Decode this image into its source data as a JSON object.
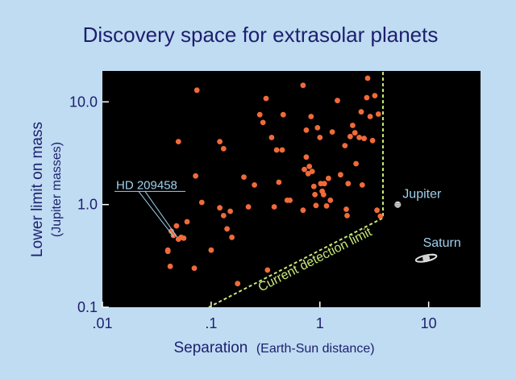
{
  "chart_data": {
    "type": "scatter",
    "title": "Discovery space for extrasolar planets",
    "xlabel_main": "Separation",
    "xlabel_unit": "(Earth-Sun distance)",
    "ylabel_main": "Lower limit on mass",
    "ylabel_unit": "(Jupiter masses)",
    "x_scale": "log",
    "y_scale": "log",
    "xlim": [
      0.01,
      30
    ],
    "ylim": [
      0.1,
      20
    ],
    "x_ticks": [
      {
        "value": 0.01,
        "label": ".01"
      },
      {
        "value": 0.1,
        "label": ".1"
      },
      {
        "value": 1,
        "label": "1"
      },
      {
        "value": 10,
        "label": "10"
      }
    ],
    "y_ticks": [
      {
        "value": 0.1,
        "label": "0.1"
      },
      {
        "value": 1,
        "label": "1.0"
      },
      {
        "value": 10,
        "label": "10.0"
      }
    ],
    "colors": {
      "background": "#bfdcf2",
      "plot_background": "#000000",
      "points": "#f06a3a",
      "text": "#1e1e6e",
      "detection_limit": "#c9e87a",
      "annotation": "#9fd0ee"
    },
    "points": [
      [
        0.074,
        13.0
      ],
      [
        0.05,
        4.1
      ],
      [
        0.072,
        1.9
      ],
      [
        0.082,
        1.05
      ],
      [
        0.12,
        4.1
      ],
      [
        0.13,
        3.5
      ],
      [
        0.12,
        0.93
      ],
      [
        0.13,
        0.78
      ],
      [
        0.14,
        0.58
      ],
      [
        0.15,
        0.86
      ],
      [
        0.155,
        0.48
      ],
      [
        0.1,
        0.36
      ],
      [
        0.048,
        0.62
      ],
      [
        0.043,
        0.55
      ],
      [
        0.045,
        0.5
      ],
      [
        0.05,
        0.46
      ],
      [
        0.053,
        0.48
      ],
      [
        0.056,
        0.47
      ],
      [
        0.06,
        0.68
      ],
      [
        0.04,
        0.36
      ],
      [
        0.042,
        0.25
      ],
      [
        0.07,
        0.24
      ],
      [
        0.175,
        0.17
      ],
      [
        0.2,
        1.85
      ],
      [
        0.22,
        0.95
      ],
      [
        0.25,
        1.55
      ],
      [
        0.28,
        7.5
      ],
      [
        0.3,
        6.3
      ],
      [
        0.32,
        10.8
      ],
      [
        0.33,
        0.23
      ],
      [
        0.36,
        4.5
      ],
      [
        0.38,
        0.95
      ],
      [
        0.4,
        3.4
      ],
      [
        0.42,
        1.65
      ],
      [
        0.45,
        3.4
      ],
      [
        0.46,
        7.5
      ],
      [
        0.5,
        1.1
      ],
      [
        0.53,
        1.1
      ],
      [
        0.7,
        14.5
      ],
      [
        0.72,
        2.2
      ],
      [
        0.75,
        2.9
      ],
      [
        0.75,
        5.3
      ],
      [
        0.78,
        2.0
      ],
      [
        0.8,
        2.35
      ],
      [
        0.83,
        7.2
      ],
      [
        0.85,
        2.1
      ],
      [
        0.88,
        1.5
      ],
      [
        0.9,
        1.25
      ],
      [
        0.92,
        0.98
      ],
      [
        0.95,
        5.6
      ],
      [
        1.0,
        4.5
      ],
      [
        1.02,
        1.6
      ],
      [
        1.05,
        1.35
      ],
      [
        1.08,
        1.25
      ],
      [
        1.1,
        1.6
      ],
      [
        1.15,
        0.97
      ],
      [
        1.2,
        1.8
      ],
      [
        1.25,
        1.1
      ],
      [
        1.3,
        5.1
      ],
      [
        1.45,
        10.3
      ],
      [
        1.55,
        1.95
      ],
      [
        1.7,
        3.75
      ],
      [
        1.75,
        0.9
      ],
      [
        1.78,
        0.78
      ],
      [
        1.82,
        1.6
      ],
      [
        1.9,
        4.6
      ],
      [
        2.0,
        5.9
      ],
      [
        2.1,
        5.0
      ],
      [
        2.15,
        2.5
      ],
      [
        2.3,
        4.5
      ],
      [
        2.4,
        8.0
      ],
      [
        2.45,
        1.55
      ],
      [
        2.55,
        4.4
      ],
      [
        2.7,
        11.0
      ],
      [
        2.75,
        17.0
      ],
      [
        2.9,
        7.2
      ],
      [
        3.05,
        4.2
      ],
      [
        3.2,
        11.5
      ],
      [
        3.35,
        0.88
      ],
      [
        3.45,
        7.6
      ],
      [
        3.6,
        0.77
      ],
      [
        0.7,
        0.88
      ],
      [
        0.04,
        0.35
      ]
    ],
    "series": [
      {
        "name": "Current detection limit",
        "type": "line",
        "points": [
          [
            0.095,
            0.1
          ],
          [
            3.8,
            0.74
          ],
          [
            3.8,
            20
          ]
        ]
      }
    ],
    "annotations": {
      "hd_label": "HD 209458",
      "hd_point": [
        0.047,
        0.45
      ],
      "jupiter_label": "Jupiter",
      "jupiter_point": [
        5.2,
        1.0
      ],
      "saturn_label": "Saturn",
      "saturn_point": [
        9.5,
        0.3
      ],
      "detection_label": "Current detection limit"
    }
  }
}
